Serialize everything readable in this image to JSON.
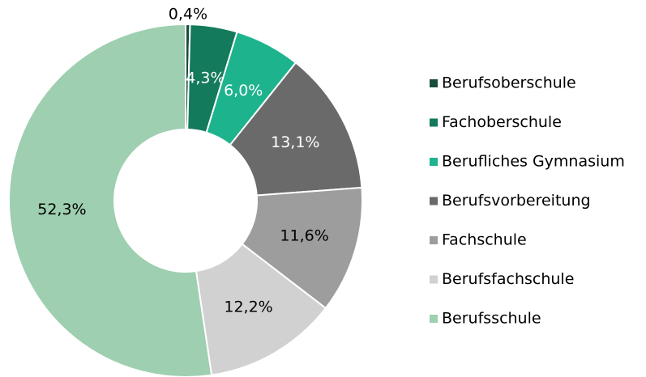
{
  "chart_data": {
    "type": "donut",
    "categories": [
      "Berufsoberschule",
      "Fachoberschule",
      "Berufliches Gymnasium",
      "Berufsvorbereitung",
      "Fachschule",
      "Berufsfachschule",
      "Berufsschule"
    ],
    "values": [
      0.4,
      4.3,
      6.0,
      13.1,
      11.6,
      12.2,
      52.3
    ],
    "value_labels": [
      "0,4%",
      "4,3%",
      "6,0%",
      "13,1%",
      "11,6%",
      "12,2%",
      "52,3%"
    ],
    "colors": [
      "#1b4d3b",
      "#137a5b",
      "#1db38d",
      "#6a6a6a",
      "#9d9d9d",
      "#d1d1d1",
      "#9ecfb0"
    ],
    "legend": "right"
  }
}
